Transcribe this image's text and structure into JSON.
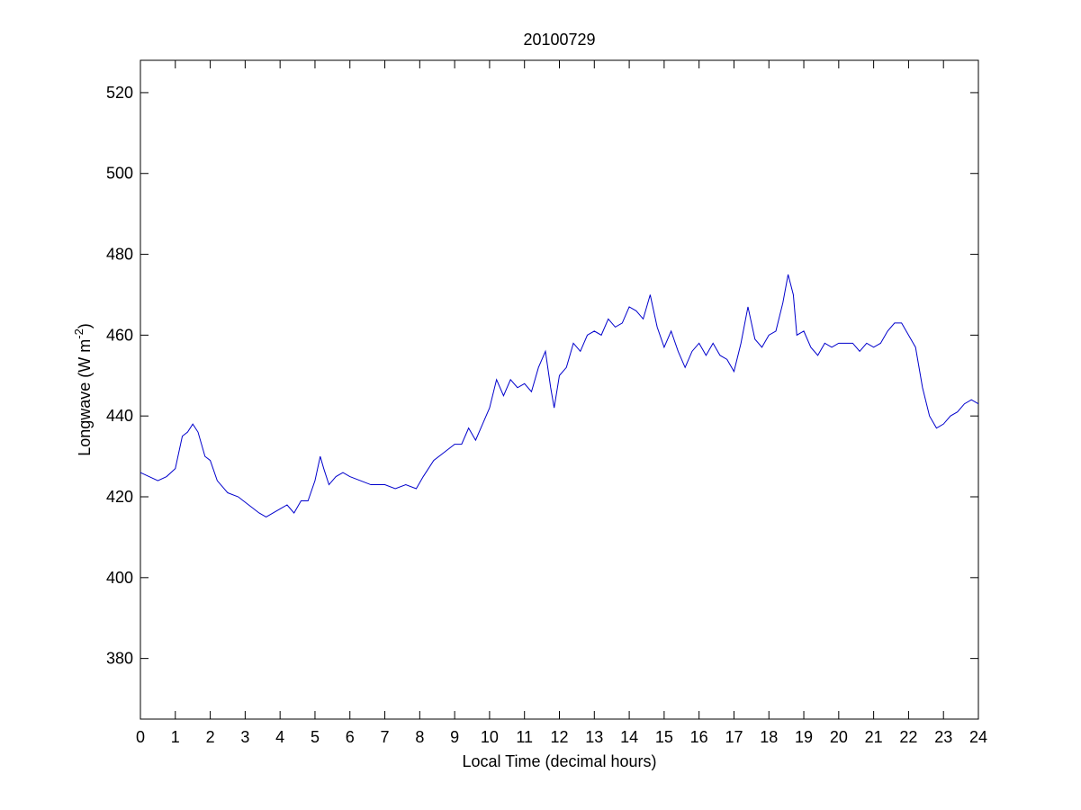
{
  "chart_data": {
    "type": "line",
    "title": "20100729",
    "xlabel": "Local Time (decimal hours)",
    "ylabel": {
      "prefix": "Longwave (W m",
      "superscript": "-2",
      "suffix": ")"
    },
    "xlim": [
      0,
      24
    ],
    "ylim": [
      365,
      528
    ],
    "x_ticks": [
      0,
      1,
      2,
      3,
      4,
      5,
      6,
      7,
      8,
      9,
      10,
      11,
      12,
      13,
      14,
      15,
      16,
      17,
      18,
      19,
      20,
      21,
      22,
      23,
      24
    ],
    "y_ticks": [
      380,
      400,
      420,
      440,
      460,
      480,
      500,
      520
    ],
    "grid": false,
    "line_color": "#0000cc",
    "series": [
      {
        "x": [
          0,
          0.25,
          0.5,
          0.75,
          1.0,
          1.2,
          1.35,
          1.5,
          1.65,
          1.85,
          2.0,
          2.2,
          2.5,
          2.8,
          3.1,
          3.4,
          3.6,
          3.8,
          4.0,
          4.2,
          4.4,
          4.6,
          4.8,
          5.0,
          5.15,
          5.25,
          5.4,
          5.6,
          5.8,
          6.0,
          6.3,
          6.6,
          7.0,
          7.3,
          7.6,
          7.9,
          8.1,
          8.4,
          8.7,
          9.0,
          9.2,
          9.4,
          9.6,
          9.8,
          10.0,
          10.2,
          10.4,
          10.6,
          10.8,
          11.0,
          11.2,
          11.4,
          11.6,
          11.75,
          11.85,
          12.0,
          12.2,
          12.4,
          12.6,
          12.8,
          13.0,
          13.2,
          13.4,
          13.6,
          13.8,
          14.0,
          14.2,
          14.4,
          14.6,
          14.8,
          15.0,
          15.2,
          15.4,
          15.6,
          15.8,
          16.0,
          16.2,
          16.4,
          16.6,
          16.8,
          17.0,
          17.2,
          17.4,
          17.6,
          17.8,
          18.0,
          18.2,
          18.4,
          18.55,
          18.7,
          18.8,
          19.0,
          19.2,
          19.4,
          19.6,
          19.8,
          20.0,
          20.2,
          20.4,
          20.6,
          20.8,
          21.0,
          21.2,
          21.4,
          21.6,
          21.8,
          22.0,
          22.2,
          22.4,
          22.6,
          22.8,
          23.0,
          23.2,
          23.4,
          23.6,
          23.8,
          24.0
        ],
        "values": [
          426,
          425,
          424,
          425,
          427,
          435,
          436,
          438,
          436,
          430,
          429,
          424,
          421,
          420,
          418,
          416,
          415,
          416,
          417,
          418,
          416,
          419,
          419,
          424,
          430,
          427,
          423,
          425,
          426,
          425,
          424,
          423,
          423,
          422,
          423,
          422,
          425,
          429,
          431,
          433,
          433,
          437,
          434,
          438,
          442,
          449,
          445,
          449,
          447,
          448,
          446,
          452,
          456,
          447,
          442,
          450,
          452,
          458,
          456,
          460,
          461,
          460,
          464,
          462,
          463,
          467,
          466,
          464,
          470,
          462,
          457,
          461,
          456,
          452,
          456,
          458,
          455,
          458,
          455,
          454,
          451,
          458,
          467,
          459,
          457,
          460,
          461,
          468,
          475,
          470,
          460,
          461,
          457,
          455,
          458,
          457,
          458,
          458,
          458,
          456,
          458,
          457,
          458,
          461,
          463,
          463,
          460,
          457,
          447,
          440,
          437,
          438,
          440,
          441,
          443,
          444,
          443
        ]
      }
    ]
  }
}
